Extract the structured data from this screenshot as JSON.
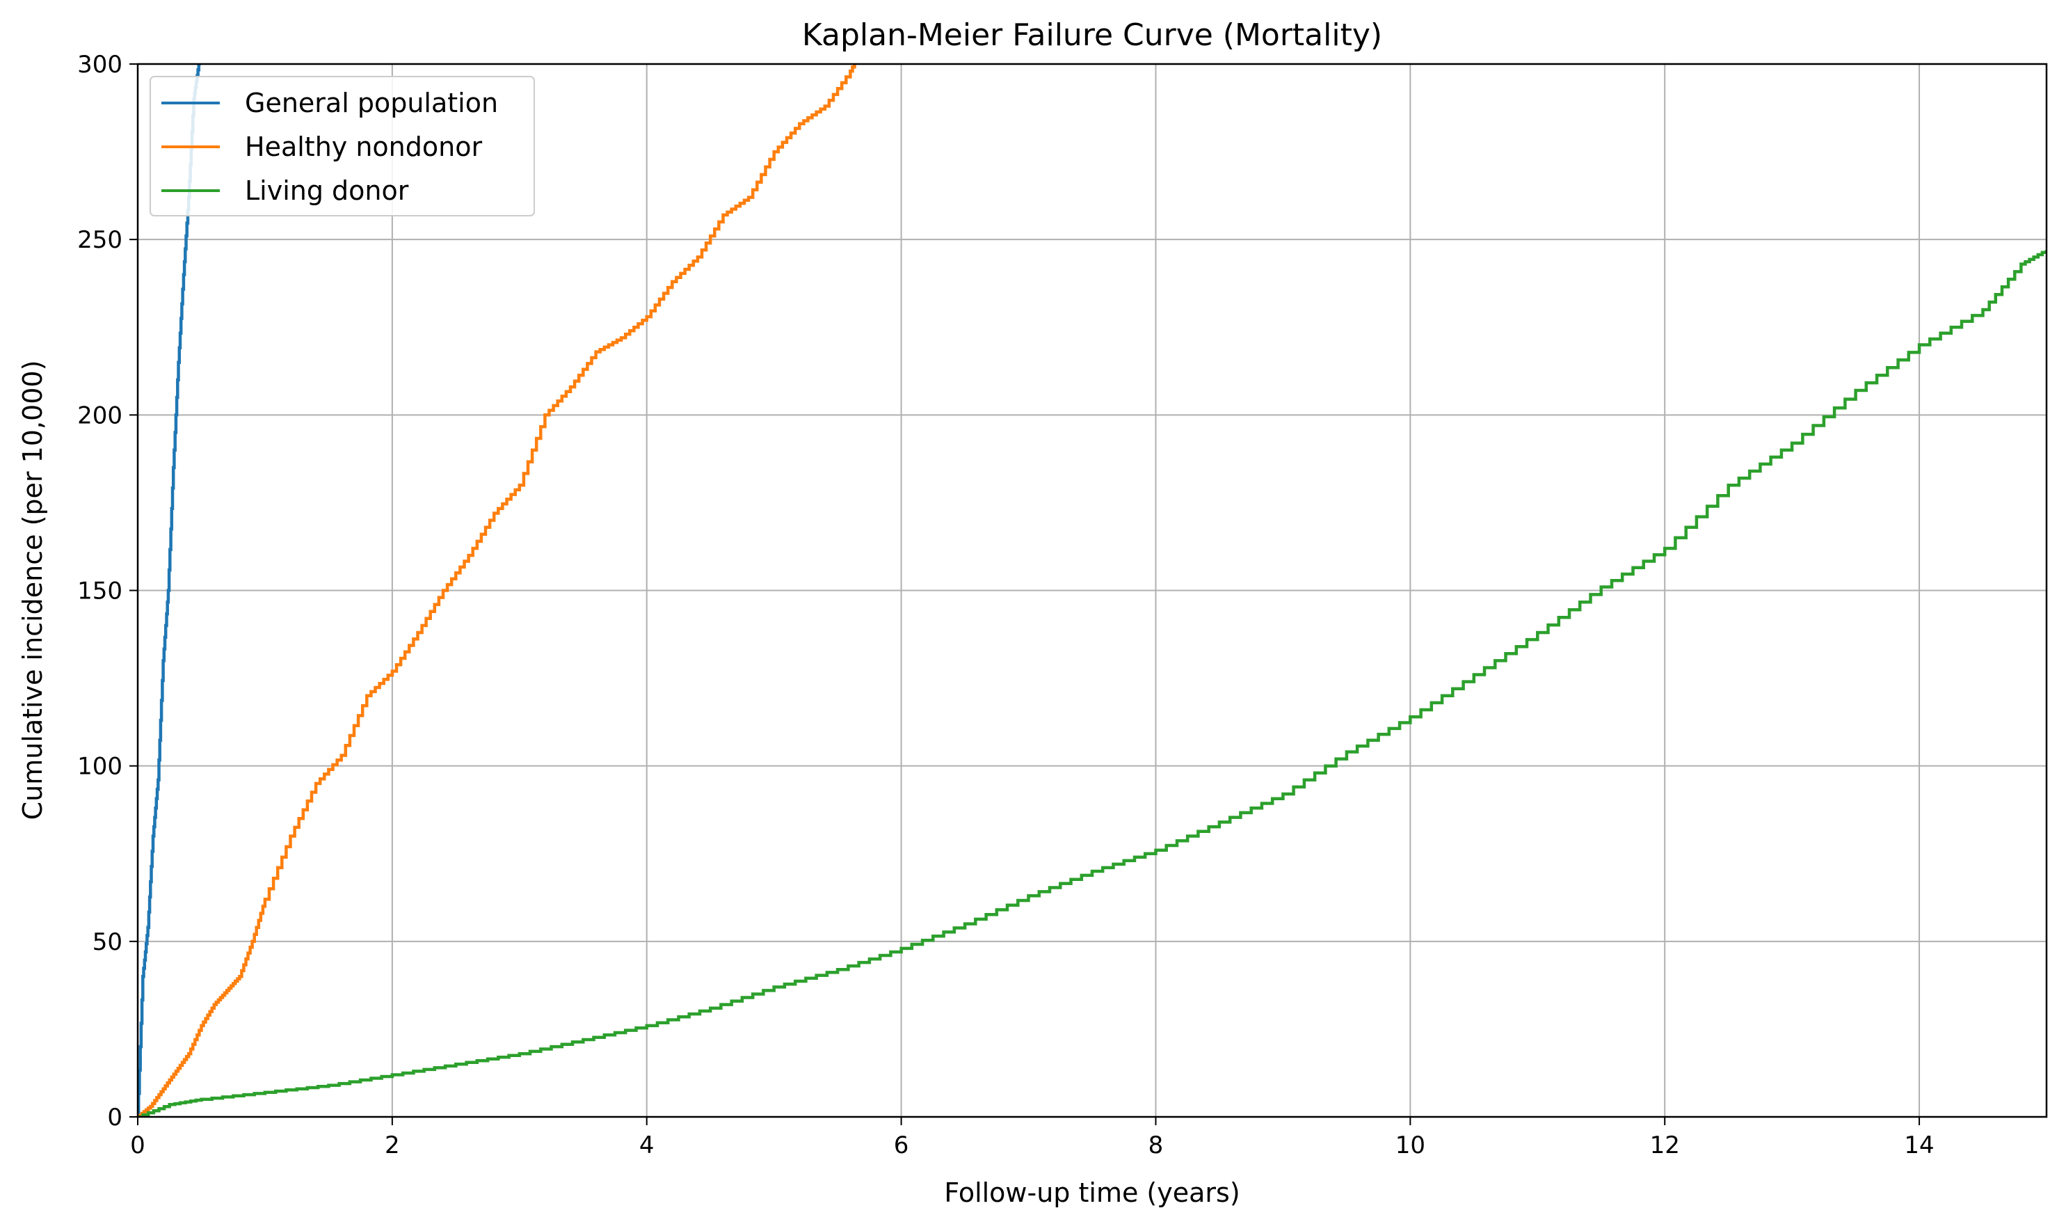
{
  "chart_data": {
    "type": "line",
    "title": "Kaplan-Meier Failure Curve (Mortality)",
    "xlabel": "Follow-up time (years)",
    "ylabel": "Cumulative incidence (per 10,000)",
    "xlim": [
      0,
      15
    ],
    "ylim": [
      0,
      300
    ],
    "x_ticks": [
      0,
      2,
      4,
      6,
      8,
      10,
      12,
      14
    ],
    "y_ticks": [
      0,
      50,
      100,
      150,
      200,
      250,
      300
    ],
    "x_tick_labels": [
      "0",
      "2",
      "4",
      "6",
      "8",
      "10",
      "12",
      "14"
    ],
    "y_tick_labels": [
      "0",
      "50",
      "100",
      "150",
      "200",
      "250",
      "300"
    ],
    "grid": true,
    "legend_position": "upper-left",
    "colors": {
      "general_population": "#1f77b4",
      "healthy_nondonor": "#ff7f0e",
      "living_donor": "#2ca02c",
      "grid": "#b0b0b0",
      "axes": "#000000"
    },
    "series": [
      {
        "name": "General population",
        "color": "#1f77b4",
        "x": [
          0,
          0.04,
          0.08,
          0.12,
          0.16,
          0.2,
          0.24,
          0.28,
          0.32,
          0.36,
          0.4,
          0.44,
          0.48,
          0.5
        ],
        "y": [
          0,
          40,
          54,
          80,
          96,
          130,
          150,
          185,
          215,
          240,
          262,
          290,
          300,
          305
        ]
      },
      {
        "name": "Healthy nondonor",
        "color": "#ff7f0e",
        "x": [
          0,
          0.1,
          0.2,
          0.3,
          0.4,
          0.5,
          0.6,
          0.7,
          0.8,
          0.9,
          1.0,
          1.2,
          1.4,
          1.6,
          1.8,
          2.0,
          2.2,
          2.4,
          2.6,
          2.8,
          3.0,
          3.2,
          3.4,
          3.6,
          3.8,
          4.0,
          4.2,
          4.4,
          4.6,
          4.8,
          5.0,
          5.2,
          5.4,
          5.6,
          5.7
        ],
        "y": [
          0,
          3,
          8,
          13,
          18,
          26,
          32,
          36,
          40,
          50,
          62,
          80,
          95,
          103,
          120,
          127,
          138,
          150,
          160,
          172,
          180,
          200,
          208,
          218,
          222,
          228,
          238,
          245,
          257,
          262,
          275,
          283,
          288,
          298,
          305
        ]
      },
      {
        "name": "Living donor",
        "color": "#2ca02c",
        "x": [
          0,
          0.25,
          0.5,
          1.0,
          1.5,
          2.0,
          2.5,
          3.0,
          3.5,
          4.0,
          4.5,
          5.0,
          5.5,
          6.0,
          6.5,
          7.0,
          7.5,
          8.0,
          8.5,
          9.0,
          9.5,
          10.0,
          10.5,
          11.0,
          11.5,
          12.0,
          12.5,
          13.0,
          13.5,
          14.0,
          14.5,
          14.8,
          15.0
        ],
        "y": [
          0,
          3.5,
          5,
          7,
          9,
          12,
          15,
          18,
          22,
          26,
          31,
          37,
          42,
          48,
          55,
          63,
          70,
          76,
          84,
          92,
          104,
          114,
          126,
          138,
          151,
          162,
          180,
          192,
          207,
          220,
          230,
          243,
          247
        ]
      }
    ]
  }
}
